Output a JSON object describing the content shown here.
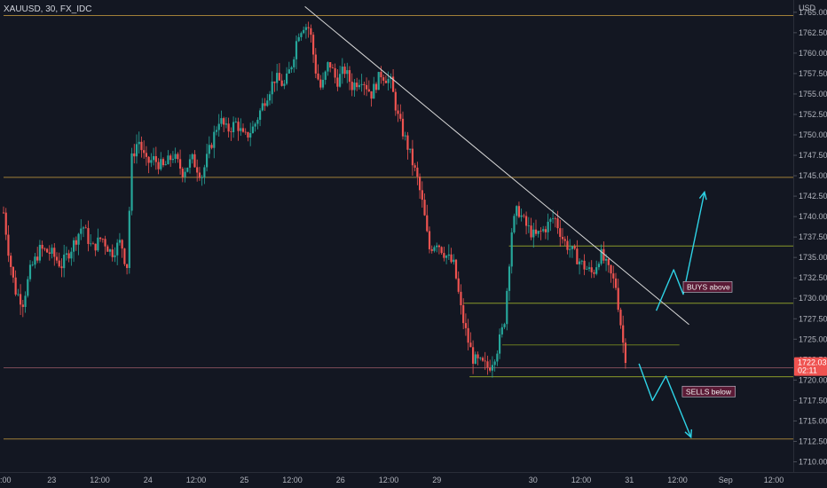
{
  "chart_data": {
    "type": "candlestick",
    "symbol_label": "XAUUSD, 30, FX_IDC",
    "currency_label": "USD",
    "ylim": [
      1708.75,
      1766.5
    ],
    "y_ticks": [
      "1765.00",
      "1762.50",
      "1760.00",
      "1757.50",
      "1755.00",
      "1752.50",
      "1750.00",
      "1747.50",
      "1745.00",
      "1742.50",
      "1740.00",
      "1737.50",
      "1735.00",
      "1732.50",
      "1730.00",
      "1727.50",
      "1725.00",
      "1722.50",
      "1720.00",
      "1717.50",
      "1715.00",
      "1712.50",
      "1710.00"
    ],
    "x_ticks": [
      {
        "label": ":00",
        "t": 0.0
      },
      {
        "label": "23",
        "t": 0.5
      },
      {
        "label": "12:00",
        "t": 1.0
      },
      {
        "label": "24",
        "t": 1.5
      },
      {
        "label": "12:00",
        "t": 2.0
      },
      {
        "label": "25",
        "t": 2.5
      },
      {
        "label": "12:00",
        "t": 3.0
      },
      {
        "label": "26",
        "t": 3.5
      },
      {
        "label": "12:00",
        "t": 4.0
      },
      {
        "label": "29",
        "t": 4.5
      },
      {
        "label": "30",
        "t": 5.5
      },
      {
        "label": "12:00",
        "t": 6.0
      },
      {
        "label": "31",
        "t": 6.5
      },
      {
        "label": "12:00",
        "t": 7.0
      },
      {
        "label": "Sep",
        "t": 7.5
      },
      {
        "label": "12:00",
        "t": 8.0
      }
    ],
    "price_path": [
      [
        0.0,
        1740.5
      ],
      [
        0.06,
        1735
      ],
      [
        0.12,
        1731
      ],
      [
        0.2,
        1729.5
      ],
      [
        0.28,
        1733.5
      ],
      [
        0.38,
        1736
      ],
      [
        0.5,
        1735.5
      ],
      [
        0.6,
        1734
      ],
      [
        0.72,
        1736.5
      ],
      [
        0.82,
        1739
      ],
      [
        0.92,
        1736
      ],
      [
        1.02,
        1737.5
      ],
      [
        1.12,
        1735.5
      ],
      [
        1.22,
        1737
      ],
      [
        1.28,
        1733.5
      ],
      [
        1.33,
        1747
      ],
      [
        1.4,
        1749.5
      ],
      [
        1.48,
        1746.5
      ],
      [
        1.56,
        1747
      ],
      [
        1.66,
        1746
      ],
      [
        1.76,
        1747.5
      ],
      [
        1.86,
        1745.5
      ],
      [
        1.96,
        1747
      ],
      [
        2.06,
        1745
      ],
      [
        2.16,
        1749
      ],
      [
        2.24,
        1752
      ],
      [
        2.32,
        1750.5
      ],
      [
        2.42,
        1751.5
      ],
      [
        2.5,
        1749.5
      ],
      [
        2.6,
        1751
      ],
      [
        2.72,
        1754.5
      ],
      [
        2.82,
        1757
      ],
      [
        2.92,
        1756
      ],
      [
        3.0,
        1759
      ],
      [
        3.06,
        1762.5
      ],
      [
        3.12,
        1763.5
      ],
      [
        3.18,
        1763
      ],
      [
        3.24,
        1758
      ],
      [
        3.3,
        1755.5
      ],
      [
        3.38,
        1759
      ],
      [
        3.46,
        1756.5
      ],
      [
        3.54,
        1758
      ],
      [
        3.62,
        1756
      ],
      [
        3.72,
        1757
      ],
      [
        3.82,
        1755
      ],
      [
        3.92,
        1757.5
      ],
      [
        4.02,
        1756.5
      ],
      [
        4.1,
        1752
      ],
      [
        4.2,
        1748.5
      ],
      [
        4.3,
        1744.5
      ],
      [
        4.36,
        1741
      ],
      [
        4.42,
        1736
      ],
      [
        4.5,
        1737
      ],
      [
        4.58,
        1735.5
      ],
      [
        4.68,
        1734
      ],
      [
        4.76,
        1728
      ],
      [
        4.82,
        1725
      ],
      [
        4.88,
        1722.5
      ],
      [
        4.96,
        1722
      ],
      [
        5.04,
        1721.5
      ],
      [
        5.12,
        1723.5
      ],
      [
        5.2,
        1727
      ],
      [
        5.28,
        1738.5
      ],
      [
        5.34,
        1741
      ],
      [
        5.42,
        1739
      ],
      [
        5.52,
        1737.5
      ],
      [
        5.62,
        1738.5
      ],
      [
        5.72,
        1740
      ],
      [
        5.82,
        1737
      ],
      [
        5.92,
        1735.5
      ],
      [
        6.02,
        1734
      ],
      [
        6.12,
        1733
      ],
      [
        6.2,
        1735.5
      ],
      [
        6.28,
        1733.5
      ],
      [
        6.36,
        1731.5
      ],
      [
        6.42,
        1726
      ],
      [
        6.46,
        1722.1
      ]
    ],
    "horizontal_levels": [
      {
        "price": 1764.6,
        "x0": 0.0,
        "x1": "end",
        "color": "#a07f38"
      },
      {
        "price": 1744.8,
        "x0": 0.0,
        "x1": "end",
        "color": "#a07f38"
      },
      {
        "price": 1721.5,
        "x0": 0.0,
        "x1": "end",
        "color": "#7a4a56"
      },
      {
        "price": 1712.8,
        "x0": 0.0,
        "x1": "end",
        "color": "#a07f38"
      },
      {
        "price": 1736.4,
        "x0": 5.25,
        "x1": "end",
        "color": "#8a9a2a"
      },
      {
        "price": 1729.4,
        "x0": 4.78,
        "x1": "end",
        "color": "#8a9a2a"
      },
      {
        "price": 1724.3,
        "x0": 5.18,
        "x1": 7.02,
        "color": "#6a7a20"
      },
      {
        "price": 1720.4,
        "x0": 4.84,
        "x1": "end",
        "color": "#8a9a2a"
      }
    ],
    "trendline": {
      "from": [
        3.13,
        1765.7
      ],
      "to": [
        7.12,
        1726.8
      ],
      "color": "#d8d8d8"
    },
    "arrow_up_path": [
      [
        6.78,
        1728.5
      ],
      [
        6.96,
        1733.5
      ],
      [
        7.06,
        1730.5
      ],
      [
        7.28,
        1743
      ]
    ],
    "arrow_down_path": [
      [
        6.6,
        1722
      ],
      [
        6.74,
        1717.5
      ],
      [
        6.88,
        1720.5
      ],
      [
        7.14,
        1713
      ]
    ],
    "buys_label": "BUYS above",
    "buys_label_at": [
      7.06,
      1731.4
    ],
    "sells_label": "SELLS below",
    "sells_label_at": [
      7.05,
      1718.6
    ],
    "arrow_color": "#2ed3e6",
    "up_color": "#26a69a",
    "down_color": "#ef5350",
    "current_price": "1722.03",
    "countdown": "02:11"
  }
}
